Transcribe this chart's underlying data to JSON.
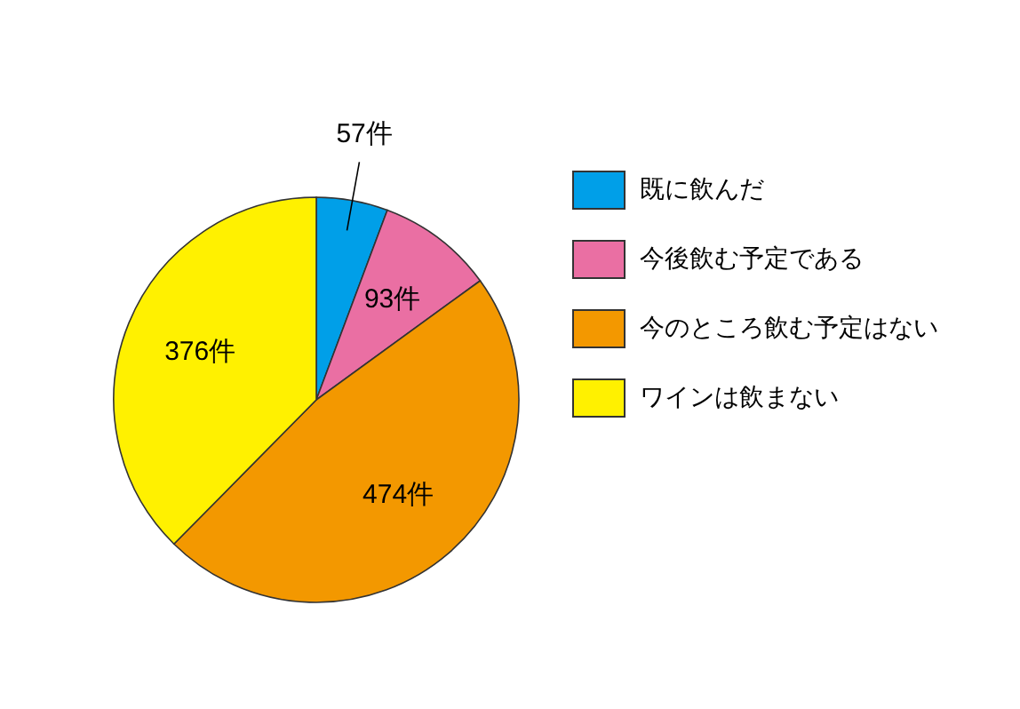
{
  "chart_data": {
    "type": "pie",
    "categories": [
      "既に飲んだ",
      "今後飲む予定である",
      "今のところ飲む予定はない",
      "ワインは飲まない"
    ],
    "values": [
      57,
      93,
      474,
      376
    ],
    "colors": [
      "#009fe8",
      "#ea6fa3",
      "#f39800",
      "#fff100"
    ],
    "value_labels": [
      "57件",
      "93件",
      "474件",
      "376件"
    ],
    "legend": "right"
  }
}
